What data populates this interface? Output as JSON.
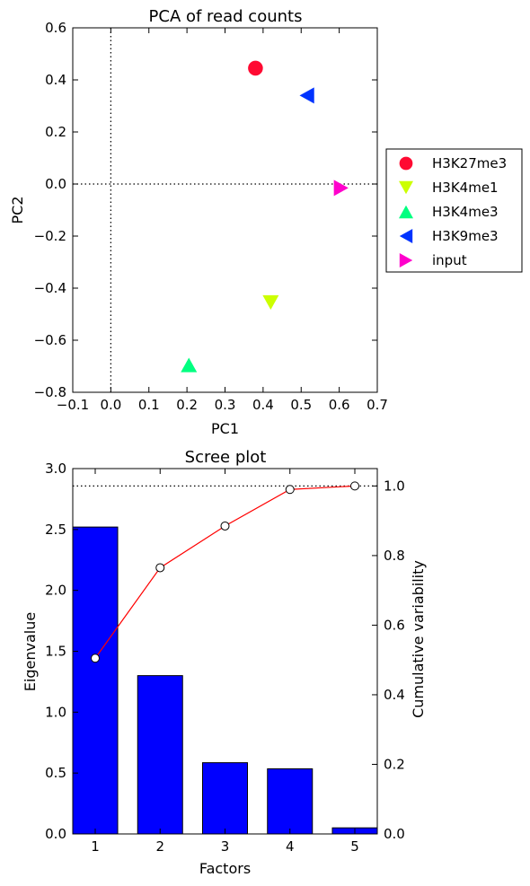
{
  "chart_data": [
    {
      "type": "scatter",
      "title": "PCA of read counts",
      "xlabel": "PC1",
      "ylabel": "PC2",
      "xlim": [
        -0.1,
        0.7
      ],
      "ylim": [
        -0.8,
        0.6
      ],
      "xticks": [
        -0.1,
        0.0,
        0.1,
        0.2,
        0.3,
        0.4,
        0.5,
        0.6,
        0.7
      ],
      "xtick_labels": [
        "−0.1",
        "0.0",
        "0.1",
        "0.2",
        "0.3",
        "0.4",
        "0.5",
        "0.6",
        "0.7"
      ],
      "yticks": [
        -0.8,
        -0.6,
        -0.4,
        -0.2,
        0.0,
        0.2,
        0.4,
        0.6
      ],
      "ytick_labels": [
        "−0.8",
        "−0.6",
        "−0.4",
        "−0.2",
        "0.0",
        "0.2",
        "0.4",
        "0.6"
      ],
      "reference_lines": {
        "x": 0.0,
        "y": 0.0
      },
      "grid": false,
      "legend_position": "right-outside",
      "series": [
        {
          "name": "H3K27me3",
          "marker": "circle",
          "color": "#ff0a32",
          "x": 0.38,
          "y": 0.445
        },
        {
          "name": "H3K4me1",
          "marker": "triangle-down",
          "color": "#ccff00",
          "x": 0.42,
          "y": -0.455
        },
        {
          "name": "H3K4me3",
          "marker": "triangle-up",
          "color": "#00ff80",
          "x": 0.205,
          "y": -0.695
        },
        {
          "name": "H3K9me3",
          "marker": "triangle-left",
          "color": "#0033ff",
          "x": 0.515,
          "y": 0.34
        },
        {
          "name": "input",
          "marker": "triangle-right",
          "color": "#ff00cc",
          "x": 0.605,
          "y": -0.015
        }
      ]
    },
    {
      "type": "bar",
      "title": "Scree plot",
      "xlabel": "Factors",
      "ylabel": "Eigenvalue",
      "y2label": "Cumulative variability",
      "categories": [
        "1",
        "2",
        "3",
        "4",
        "5"
      ],
      "values": [
        2.52,
        1.3,
        0.585,
        0.535,
        0.05
      ],
      "ylim": [
        0.0,
        3.0
      ],
      "yticks": [
        "0.0",
        "0.5",
        "1.0",
        "1.5",
        "2.0",
        "2.5",
        "3.0"
      ],
      "y2lim": [
        0.0,
        1.05
      ],
      "y2ticks": [
        "0.0",
        "0.2",
        "0.4",
        "0.6",
        "0.8",
        "1.0"
      ],
      "cumulative": [
        0.505,
        0.765,
        0.885,
        0.99,
        1.0
      ],
      "reference_line_y2": 1.0,
      "bar_color": "#0000ff",
      "line_color": "#ff0000",
      "grid": false
    }
  ]
}
